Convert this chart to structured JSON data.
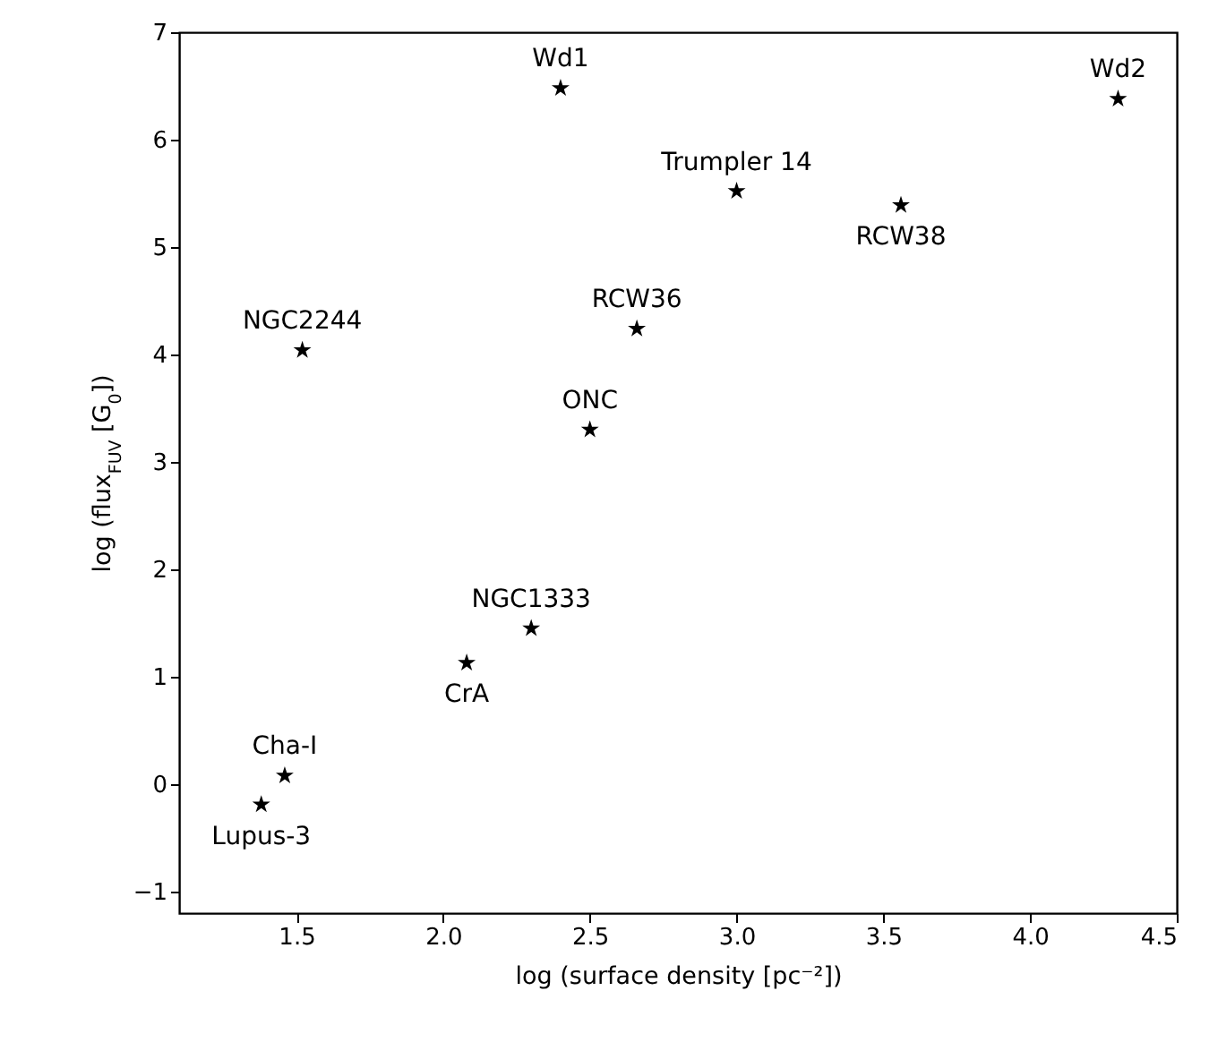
{
  "chart_data": {
    "type": "scatter",
    "xlabel": "log (surface density [pc⁻²])",
    "ylabel": "log (flux$_{FUV}$ [G$_{0}$])",
    "x": [
      1.38,
      1.46,
      2.08,
      2.3,
      2.5,
      2.66,
      1.52,
      2.4,
      3.0,
      3.56,
      4.3
    ],
    "series": [
      {
        "color": "#000000",
        "values": [
          -0.19,
          0.08,
          1.13,
          1.45,
          3.3,
          4.24,
          4.04,
          6.48,
          5.52,
          5.39,
          6.38
        ]
      }
    ],
    "marker": "star",
    "grid": false,
    "xlim": [
      1.1,
      4.5
    ],
    "xticks": [
      1.5,
      {
        "value": 2,
        "label": "2.0"
      },
      2.5,
      {
        "value": 3,
        "label": "3.0"
      },
      3.5,
      {
        "value": 4,
        "label": "4.0"
      },
      4.5
    ],
    "ylim": [
      -1.2,
      7
    ],
    "yticks": [
      -1,
      0,
      1,
      2,
      3,
      4,
      5,
      6,
      7
    ],
    "annotations": [
      {
        "text": "Lupus-3",
        "x": 1.38,
        "y": -0.19
      },
      {
        "text": "Cha-I",
        "x": 1.46,
        "y": 0.08
      },
      {
        "text": "CrA",
        "x": 2.08,
        "y": 1.13
      },
      {
        "text": "NGC1333",
        "x": 2.3,
        "y": 1.45
      },
      {
        "text": "ONC",
        "x": 2.5,
        "y": 3.3
      },
      {
        "text": "RCW36",
        "x": 2.66,
        "y": 4.24
      },
      {
        "text": "NGC2244",
        "x": 1.52,
        "y": 4.04
      },
      {
        "text": "Wd1",
        "x": 2.4,
        "y": 6.48
      },
      {
        "text": "Trumpler 14",
        "x": 3.0,
        "y": 5.52
      },
      {
        "text": "RCW38",
        "x": 3.56,
        "y": 5.39
      },
      {
        "text": "Wd2",
        "x": 4.3,
        "y": 6.38
      }
    ]
  }
}
